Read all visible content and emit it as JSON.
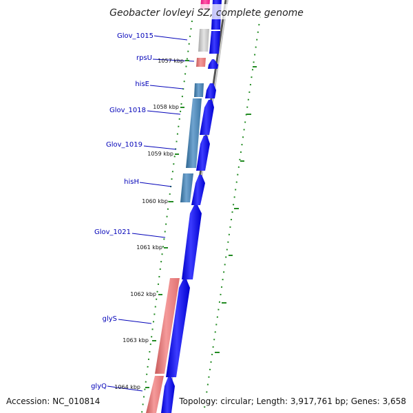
{
  "title": "Geobacter lovleyi SZ, complete genome",
  "accession": "Accession: NC_010814",
  "topology": "Topology: circular; Length: 3,917,761 bp; Genes: 3,658",
  "colors": {
    "title": "#222222",
    "gene_label": "#0000b8",
    "forward_arrow": "#0000ee",
    "reverse_salmon": "#f08080",
    "reverse_steelblue": "#4682b4",
    "reverse_magenta": "#ff1493",
    "reverse_gray": "#c8c8c8",
    "kbp_tick": "#228b22",
    "gc_dot": "#228b22",
    "backbone": "#555555"
  },
  "genes": [
    {
      "label": "Glov_1015"
    },
    {
      "label": "rpsU"
    },
    {
      "label": "hisE"
    },
    {
      "label": "Glov_1018"
    },
    {
      "label": "Glov_1019"
    },
    {
      "label": "hisH"
    },
    {
      "label": "Glov_1021"
    },
    {
      "label": "glyS"
    },
    {
      "label": "glyQ"
    }
  ],
  "kbp_ticks": [
    {
      "label": "1057 kbp"
    },
    {
      "label": "1058 kbp"
    },
    {
      "label": "1059 kbp"
    },
    {
      "label": "1060 kbp"
    },
    {
      "label": "1061 kbp"
    },
    {
      "label": "1062 kbp"
    },
    {
      "label": "1063 kbp"
    },
    {
      "label": "1064 kbp"
    }
  ]
}
